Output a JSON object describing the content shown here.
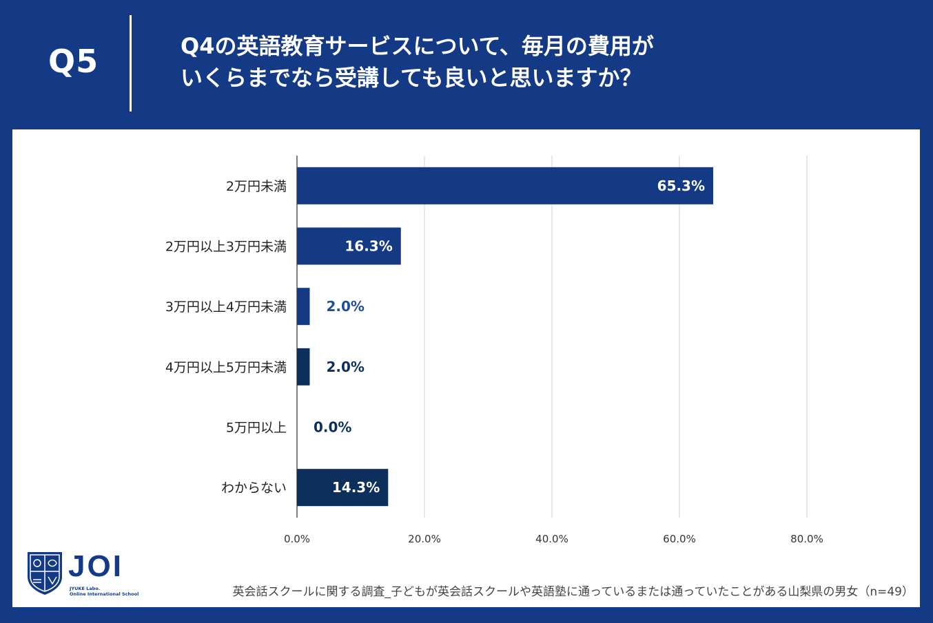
{
  "header": {
    "question_number": "Q5",
    "question_line1": "Q4の英語教育サービスについて、毎月の費用が",
    "question_line2": "いくらまでなら受講しても良いと思いますか？"
  },
  "chart_data": {
    "type": "bar",
    "orientation": "horizontal",
    "categories": [
      "2万円未満",
      "2万円以上3万円未満",
      "3万円以上4万円未満",
      "4万円以上5万円未満",
      "5万円以上",
      "わからない"
    ],
    "values": [
      65.3,
      16.3,
      2.0,
      2.0,
      0.0,
      14.3
    ],
    "value_labels": [
      "65.3%",
      "16.3%",
      "2.0%",
      "2.0%",
      "0.0%",
      "14.3%"
    ],
    "x_ticks": [
      "0.0%",
      "20.0%",
      "40.0%",
      "60.0%",
      "80.0%"
    ],
    "xlim": [
      0,
      80
    ],
    "bar_colors": [
      "#143a86",
      "#143a86",
      "#143a86",
      "#0d2f5c",
      "#0d2f5c",
      "#0d2f5c"
    ],
    "label_colors_outside": [
      "#143a86",
      "#143a86",
      "#1f4e9a",
      "#0d2f5c",
      "#0d2f5c",
      "#0d2f5c"
    ],
    "grid": true
  },
  "logo": {
    "name": "JOI",
    "subtitle_line1": "JYUKE Labo.",
    "subtitle_line2": "Online International School"
  },
  "footnote": "英会話スクールに関する調査_子どもが英会話スクールや英語塾に通っているまたは通っていたことがある山梨県の男女（n=49）",
  "colors": {
    "brand": "#143a86",
    "panel": "#ffffff",
    "grid": "#d0d0d0"
  }
}
